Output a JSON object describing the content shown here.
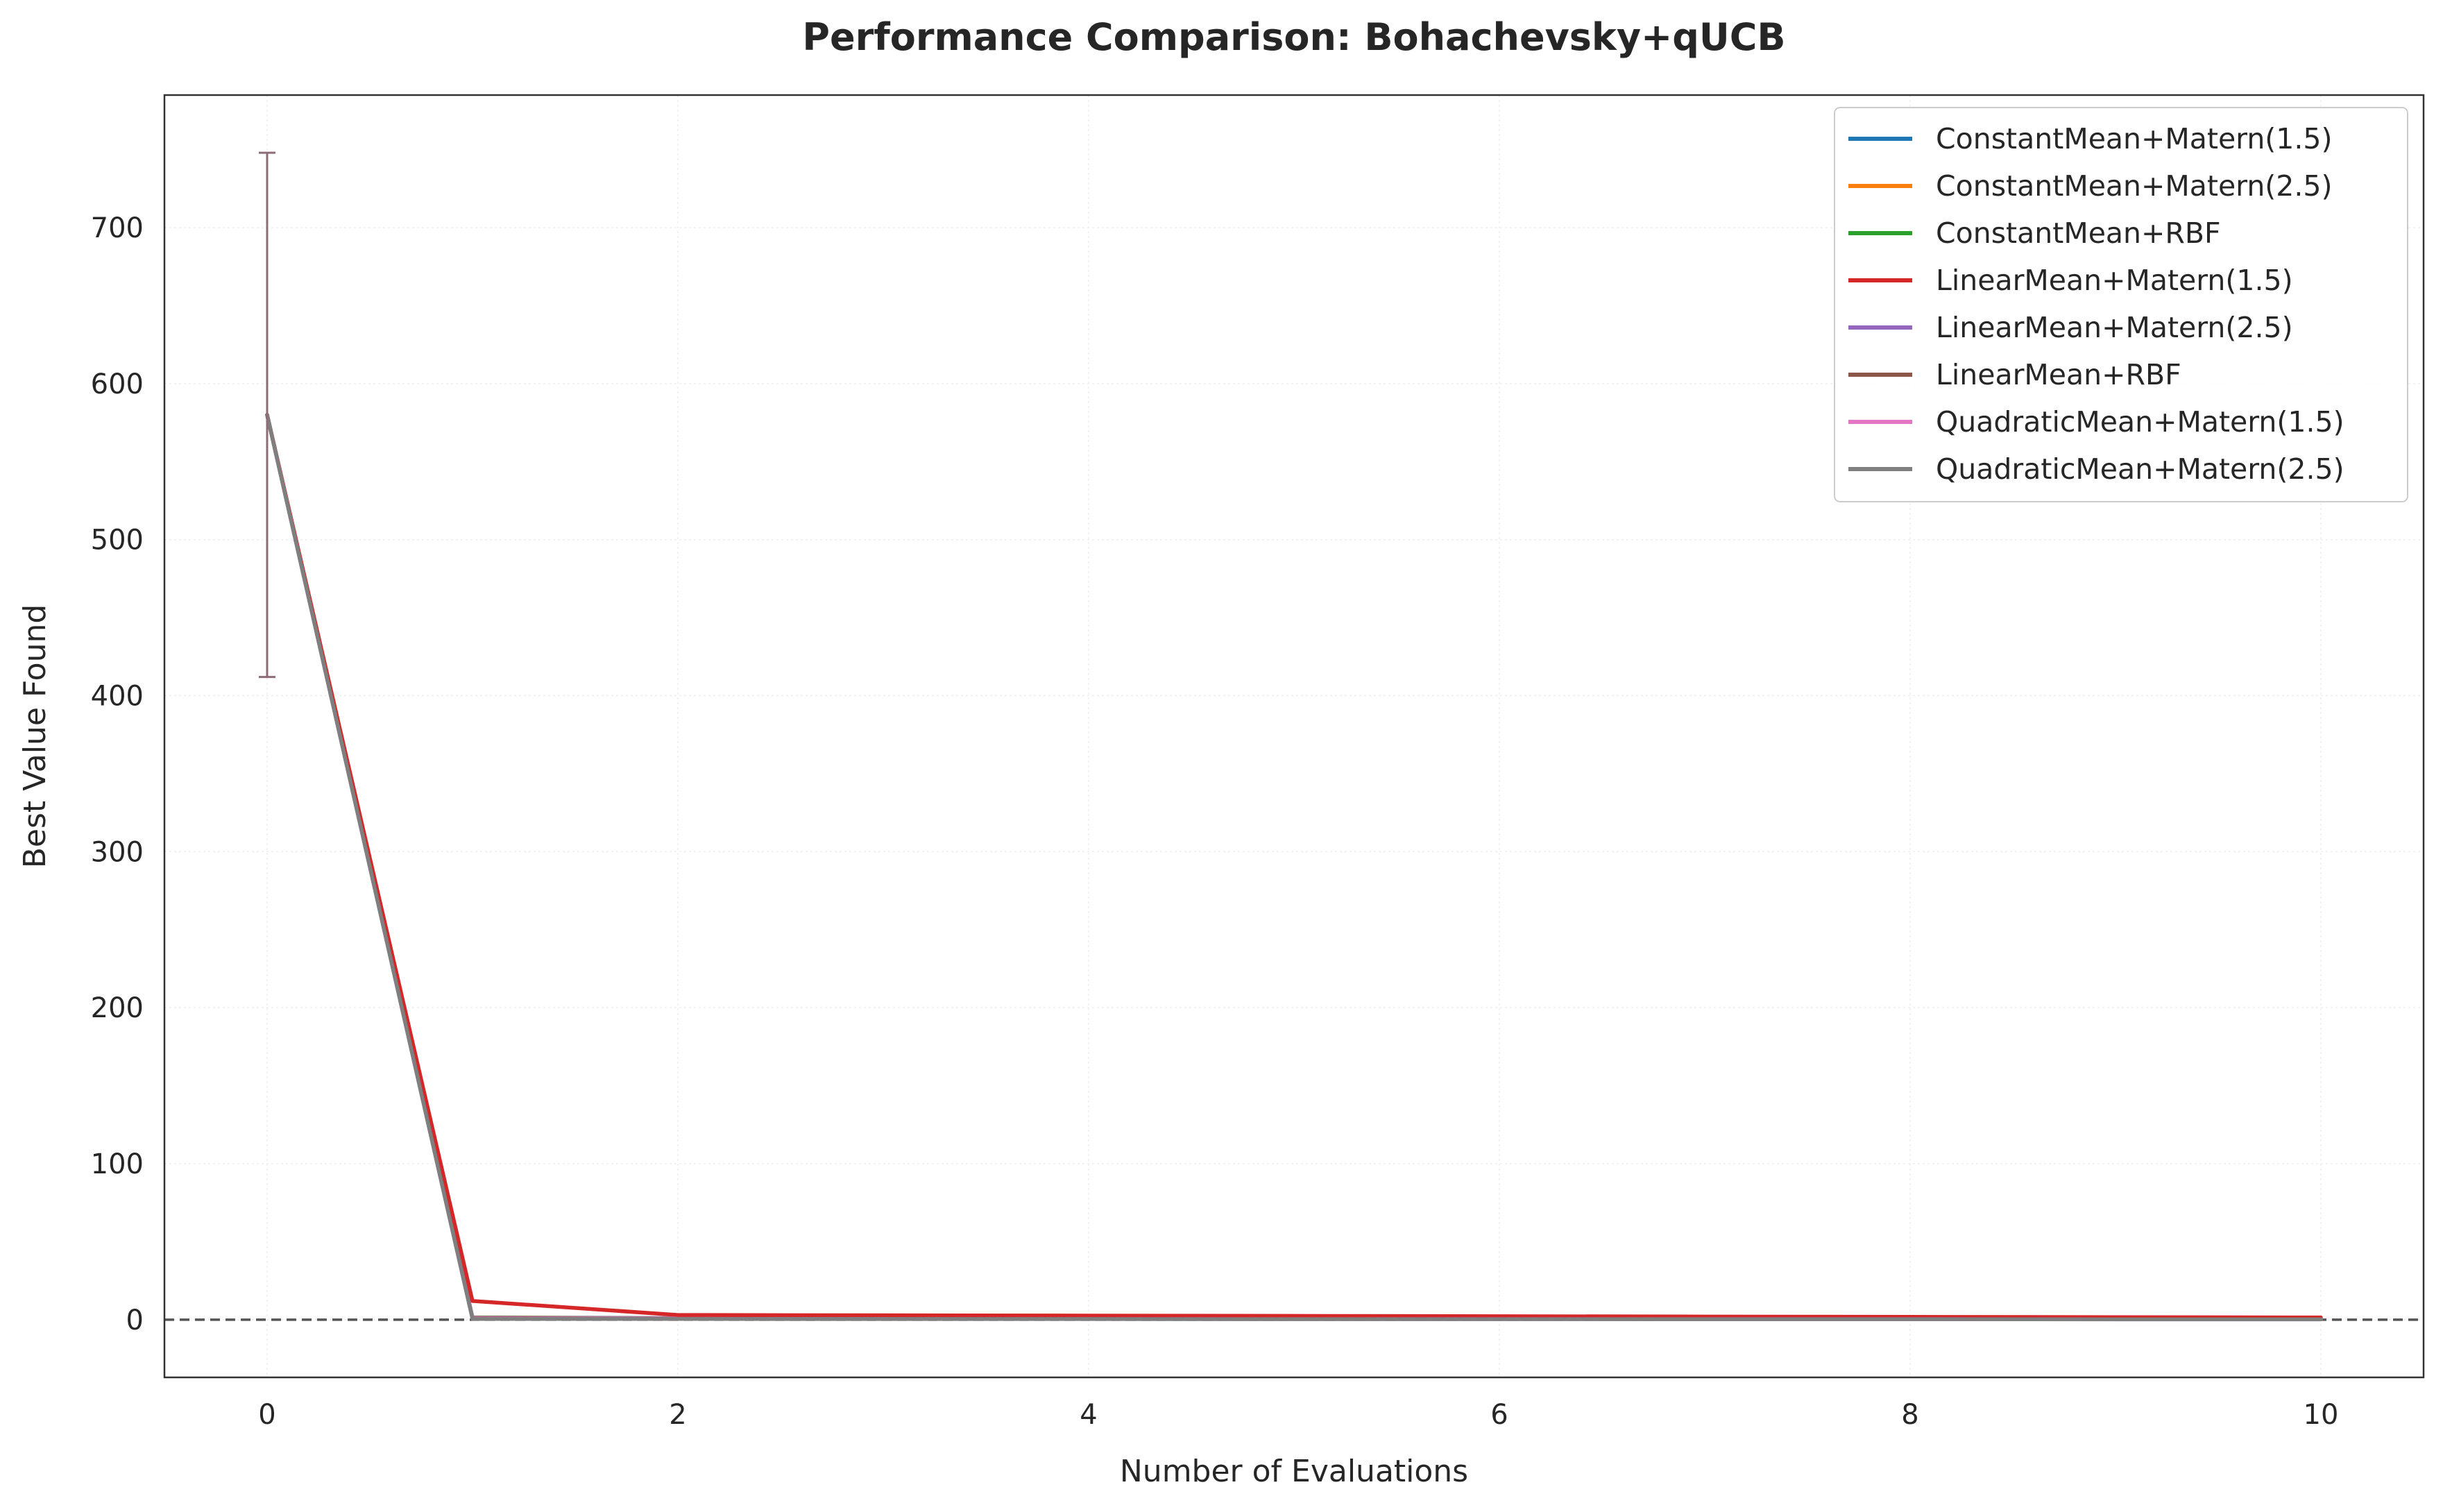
{
  "chart_data": {
    "type": "line",
    "title": "Performance Comparison: Bohachevsky+qUCB",
    "xlabel": "Number of Evaluations",
    "ylabel": "Best Value Found",
    "xlim": [
      -0.5,
      10.5
    ],
    "ylim": [
      -37,
      785
    ],
    "xticks": [
      0,
      2,
      4,
      6,
      8,
      10
    ],
    "yticks": [
      0,
      100,
      200,
      300,
      400,
      500,
      600,
      700
    ],
    "grid": true,
    "legend_position": "top-right",
    "reference_line": {
      "y": 0,
      "style": "dashed",
      "color": "#555555"
    },
    "x": [
      0,
      1,
      2,
      3,
      4,
      5,
      6,
      7,
      8,
      9,
      10
    ],
    "series": [
      {
        "name": "ConstantMean+Matern(1.5)",
        "color": "#1f77b4",
        "values": [
          580,
          1.5,
          1.0,
          0.9,
          0.8,
          0.7,
          0.6,
          0.5,
          0.5,
          0.4,
          0.4
        ]
      },
      {
        "name": "ConstantMean+Matern(2.5)",
        "color": "#ff7f0e",
        "values": [
          580,
          1.2,
          0.9,
          0.8,
          0.7,
          0.6,
          0.5,
          0.5,
          0.4,
          0.4,
          0.3
        ]
      },
      {
        "name": "ConstantMean+RBF",
        "color": "#2ca02c",
        "values": [
          580,
          1.0,
          0.8,
          0.7,
          0.6,
          0.5,
          0.5,
          0.4,
          0.4,
          0.3,
          0.3
        ]
      },
      {
        "name": "LinearMean+Matern(1.5)",
        "color": "#d62728",
        "values": [
          580,
          12,
          3,
          2.8,
          2.6,
          2.4,
          2.2,
          2.0,
          1.8,
          1.6,
          1.4
        ]
      },
      {
        "name": "LinearMean+Matern(2.5)",
        "color": "#9467bd",
        "values": [
          580,
          1.0,
          0.8,
          0.7,
          0.6,
          0.5,
          0.5,
          0.4,
          0.4,
          0.3,
          0.3
        ]
      },
      {
        "name": "LinearMean+RBF",
        "color": "#8c564b",
        "values": [
          580,
          1.0,
          0.8,
          0.7,
          0.6,
          0.5,
          0.5,
          0.4,
          0.4,
          0.3,
          0.3
        ]
      },
      {
        "name": "QuadraticMean+Matern(1.5)",
        "color": "#e377c2",
        "values": [
          580,
          0.8,
          0.7,
          0.6,
          0.5,
          0.5,
          0.4,
          0.4,
          0.3,
          0.3,
          0.3
        ]
      },
      {
        "name": "QuadraticMean+Matern(2.5)",
        "color": "#7f7f7f",
        "values": [
          580,
          0.5,
          0.5,
          0.4,
          0.4,
          0.3,
          0.3,
          0.3,
          0.3,
          0.2,
          0.2
        ]
      }
    ],
    "error_bars": [
      {
        "x": 0,
        "low": 412,
        "high": 748,
        "color": "#8c6d75"
      }
    ]
  }
}
